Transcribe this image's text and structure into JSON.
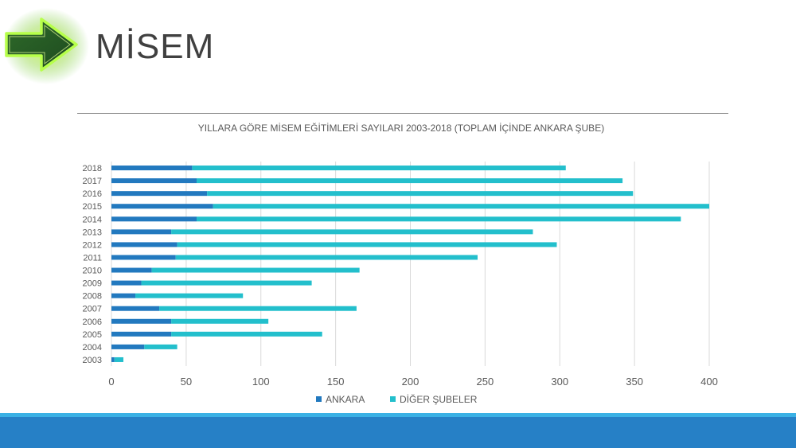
{
  "slide": {
    "title": "MİSEM"
  },
  "icons": {
    "logo": "green-arrow-icon"
  },
  "colors": {
    "ankara": "#2279bf",
    "diger": "#23bfcc",
    "footer": "#2680c6",
    "footer_accent": "#3ab1e5"
  },
  "chart_data": {
    "type": "bar",
    "orientation": "horizontal",
    "stacked": true,
    "title": "YILLARA GÖRE MİSEM EĞİTİMLERİ SAYILARI 2003-2018 (TOPLAM İÇİNDE ANKARA ŞUBE)",
    "categories": [
      "2018",
      "2017",
      "2016",
      "2015",
      "2014",
      "2013",
      "2012",
      "2011",
      "2010",
      "2009",
      "2008",
      "2007",
      "2006",
      "2005",
      "2004",
      "2003"
    ],
    "series": [
      {
        "name": "ANKARA",
        "values": [
          54,
          57,
          64,
          68,
          57,
          40,
          44,
          43,
          27,
          20,
          16,
          32,
          40,
          40,
          22,
          2
        ]
      },
      {
        "name": "DİĞER ŞUBELER",
        "values": [
          250,
          285,
          285,
          332,
          324,
          242,
          254,
          202,
          139,
          114,
          72,
          132,
          65,
          101,
          22,
          6
        ]
      }
    ],
    "xlim": [
      0,
      400
    ],
    "xticks": [
      "0",
      "50",
      "100",
      "150",
      "200",
      "250",
      "300",
      "350",
      "400"
    ],
    "grid": true,
    "legend": "bottom"
  }
}
